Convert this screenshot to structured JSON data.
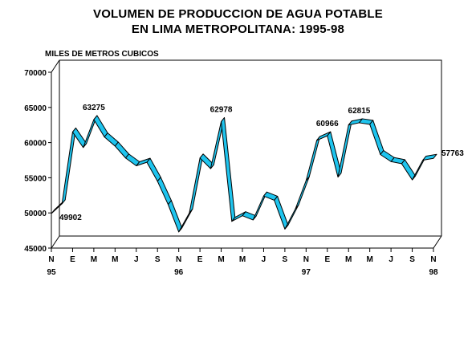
{
  "chart_data": {
    "type": "line",
    "title": "VOLUMEN DE PRODUCCION DE AGUA POTABLE",
    "subtitle": "EN LIMA METROPOLITANA: 1995-98",
    "ylabel": "MILES DE METROS CUBICOS",
    "xlabel": "",
    "ylim": [
      45000,
      70000
    ],
    "yticks": [
      45000,
      50000,
      55000,
      60000,
      65000,
      70000
    ],
    "xtick_labels": [
      {
        "label": "N",
        "sub": "95"
      },
      {
        "label": "E",
        "sub": ""
      },
      {
        "label": "M",
        "sub": ""
      },
      {
        "label": "M",
        "sub": ""
      },
      {
        "label": "J",
        "sub": ""
      },
      {
        "label": "S",
        "sub": ""
      },
      {
        "label": "N",
        "sub": "96"
      },
      {
        "label": "E",
        "sub": ""
      },
      {
        "label": "M",
        "sub": ""
      },
      {
        "label": "M",
        "sub": ""
      },
      {
        "label": "J",
        "sub": ""
      },
      {
        "label": "S",
        "sub": ""
      },
      {
        "label": "N",
        "sub": "97"
      },
      {
        "label": "E",
        "sub": ""
      },
      {
        "label": "M",
        "sub": ""
      },
      {
        "label": "M",
        "sub": ""
      },
      {
        "label": "J",
        "sub": ""
      },
      {
        "label": "S",
        "sub": ""
      },
      {
        "label": "N",
        "sub": "98"
      }
    ],
    "series": [
      {
        "values": [
          49902,
          51300,
          61500,
          59300,
          63275,
          60800,
          59500,
          57800,
          56700,
          57200,
          54500,
          51200,
          47300,
          50000,
          57800,
          56300,
          62978,
          48800,
          49600,
          49000,
          52400,
          51800,
          47700,
          50600,
          54600,
          60300,
          60966,
          55100,
          62500,
          62815,
          62600,
          58300,
          57300,
          57000,
          54700,
          57500,
          57763
        ]
      }
    ],
    "annotations": [
      {
        "index": 0,
        "text": "49902"
      },
      {
        "index": 4,
        "text": "63275"
      },
      {
        "index": 16,
        "text": "62978"
      },
      {
        "index": 26,
        "text": "60966"
      },
      {
        "index": 29,
        "text": "62815"
      },
      {
        "index": 36,
        "text": "57763"
      }
    ],
    "grid": false,
    "colors": {
      "ribbon": "#1ec4ee",
      "line": "#000000"
    }
  }
}
